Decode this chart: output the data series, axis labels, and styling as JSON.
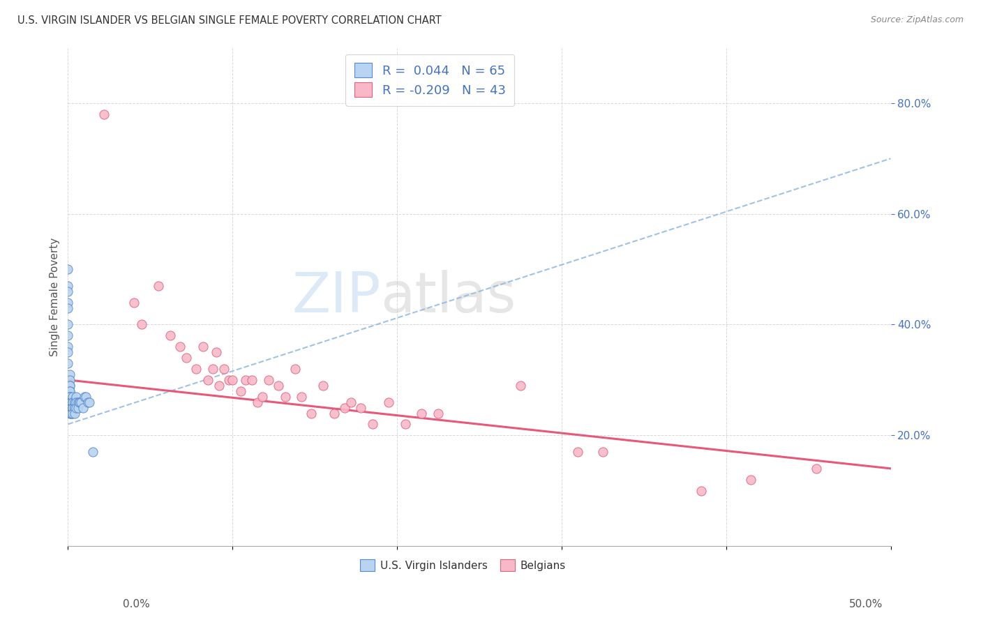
{
  "title": "U.S. VIRGIN ISLANDER VS BELGIAN SINGLE FEMALE POVERTY CORRELATION CHART",
  "source": "Source: ZipAtlas.com",
  "ylabel": "Single Female Poverty",
  "watermark_zip": "ZIP",
  "watermark_atlas": "atlas",
  "legend_label1": "U.S. Virgin Islanders",
  "legend_label2": "Belgians",
  "R1": 0.044,
  "N1": 65,
  "R2": -0.209,
  "N2": 43,
  "color_blue_fill": "#b8d4f0",
  "color_blue_edge": "#5588cc",
  "color_pink_fill": "#f8b8c8",
  "color_pink_edge": "#e06080",
  "color_trend_blue": "#90b8e0",
  "color_trend_pink": "#e85878",
  "xlim": [
    0.0,
    0.5
  ],
  "ylim": [
    0.0,
    0.9
  ],
  "xticks": [
    0.0,
    0.1,
    0.2,
    0.3,
    0.4,
    0.5
  ],
  "yticks": [
    0.2,
    0.4,
    0.6,
    0.8
  ],
  "background_color": "#ffffff",
  "grid_color": "#d8d8d8",
  "blue_x": [
    0.0,
    0.0,
    0.0,
    0.0,
    0.0,
    0.0,
    0.0,
    0.0,
    0.0,
    0.0,
    0.001,
    0.001,
    0.001,
    0.001,
    0.001,
    0.001,
    0.001,
    0.001,
    0.001,
    0.001,
    0.001,
    0.001,
    0.001,
    0.001,
    0.001,
    0.001,
    0.001,
    0.001,
    0.001,
    0.001,
    0.002,
    0.002,
    0.002,
    0.002,
    0.002,
    0.002,
    0.002,
    0.002,
    0.002,
    0.003,
    0.003,
    0.003,
    0.003,
    0.003,
    0.003,
    0.003,
    0.004,
    0.004,
    0.004,
    0.004,
    0.004,
    0.005,
    0.005,
    0.005,
    0.006,
    0.006,
    0.007,
    0.007,
    0.008,
    0.009,
    0.01,
    0.011,
    0.012,
    0.013,
    0.015
  ],
  "blue_y": [
    0.5,
    0.47,
    0.46,
    0.44,
    0.43,
    0.4,
    0.38,
    0.36,
    0.35,
    0.33,
    0.31,
    0.3,
    0.29,
    0.29,
    0.28,
    0.28,
    0.27,
    0.27,
    0.27,
    0.26,
    0.26,
    0.26,
    0.26,
    0.25,
    0.25,
    0.25,
    0.25,
    0.25,
    0.25,
    0.24,
    0.26,
    0.26,
    0.26,
    0.25,
    0.25,
    0.25,
    0.24,
    0.24,
    0.24,
    0.27,
    0.26,
    0.26,
    0.25,
    0.25,
    0.25,
    0.24,
    0.26,
    0.26,
    0.25,
    0.25,
    0.24,
    0.27,
    0.26,
    0.25,
    0.26,
    0.25,
    0.26,
    0.26,
    0.26,
    0.25,
    0.27,
    0.27,
    0.26,
    0.26,
    0.17
  ],
  "pink_x": [
    0.022,
    0.04,
    0.045,
    0.055,
    0.062,
    0.068,
    0.072,
    0.078,
    0.082,
    0.085,
    0.088,
    0.09,
    0.092,
    0.095,
    0.098,
    0.1,
    0.105,
    0.108,
    0.112,
    0.115,
    0.118,
    0.122,
    0.128,
    0.132,
    0.138,
    0.142,
    0.148,
    0.155,
    0.162,
    0.168,
    0.172,
    0.178,
    0.185,
    0.195,
    0.205,
    0.215,
    0.225,
    0.275,
    0.31,
    0.325,
    0.385,
    0.415,
    0.455
  ],
  "pink_y": [
    0.78,
    0.44,
    0.4,
    0.47,
    0.38,
    0.36,
    0.34,
    0.32,
    0.36,
    0.3,
    0.32,
    0.35,
    0.29,
    0.32,
    0.3,
    0.3,
    0.28,
    0.3,
    0.3,
    0.26,
    0.27,
    0.3,
    0.29,
    0.27,
    0.32,
    0.27,
    0.24,
    0.29,
    0.24,
    0.25,
    0.26,
    0.25,
    0.22,
    0.26,
    0.22,
    0.24,
    0.24,
    0.29,
    0.17,
    0.17,
    0.1,
    0.12,
    0.14
  ],
  "blue_trend_x0": 0.0,
  "blue_trend_x1": 0.5,
  "blue_trend_y0": 0.22,
  "blue_trend_y1": 0.7,
  "pink_trend_x0": 0.0,
  "pink_trend_x1": 0.5,
  "pink_trend_y0": 0.3,
  "pink_trend_y1": 0.14
}
